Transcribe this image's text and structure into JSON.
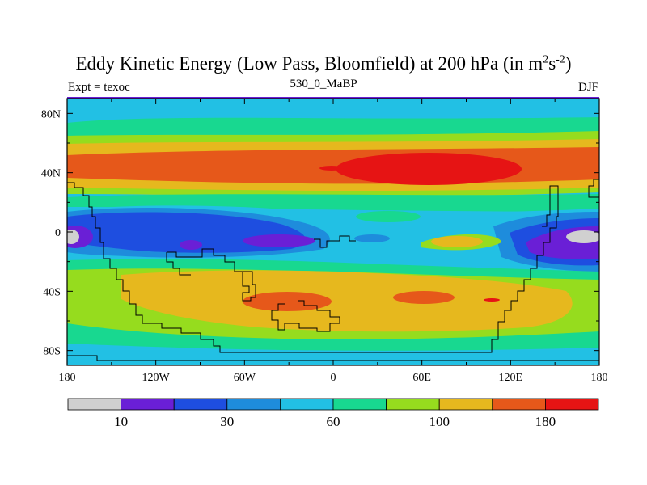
{
  "title": {
    "main": "Eddy Kinetic Energy (Low Pass, Bloomfield) at 200 hPa (in m",
    "sup1": "2",
    "mid": "s",
    "sup2": "-2",
    "end": ")"
  },
  "subtitle": {
    "left": "Expt = texoc",
    "center": "530_0_MaBP",
    "right": "DJF"
  },
  "axes": {
    "x_ticks": [
      "180",
      "120W",
      "60W",
      "0",
      "60E",
      "120E",
      "180"
    ],
    "y_ticks": [
      "80N",
      "40N",
      "0",
      "40S",
      "80S"
    ]
  },
  "colorbar": {
    "colors": [
      "#d0d0d0",
      "#6a1fd6",
      "#1e4ee0",
      "#1e8cdc",
      "#22c0e4",
      "#18d890",
      "#96dc1e",
      "#e6b81e",
      "#e6581a",
      "#e61414"
    ],
    "labels": [
      "10",
      "30",
      "60",
      "100",
      "180"
    ]
  }
}
